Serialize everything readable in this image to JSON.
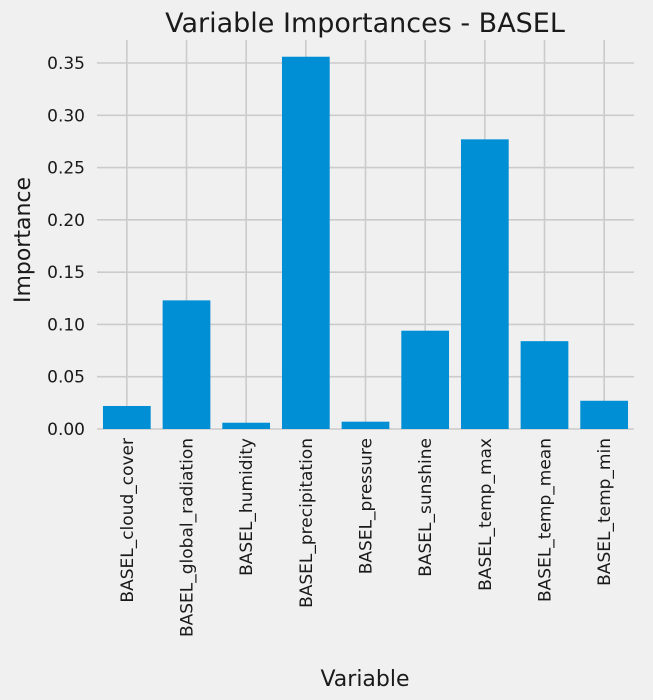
{
  "chart_data": {
    "type": "bar",
    "title": "Variable Importances - BASEL",
    "xlabel": "Variable",
    "ylabel": "Importance",
    "categories": [
      "BASEL_cloud_cover",
      "BASEL_global_radiation",
      "BASEL_humidity",
      "BASEL_precipitation",
      "BASEL_pressure",
      "BASEL_sunshine",
      "BASEL_temp_max",
      "BASEL_temp_mean",
      "BASEL_temp_min"
    ],
    "values": [
      0.022,
      0.123,
      0.006,
      0.356,
      0.007,
      0.094,
      0.277,
      0.084,
      0.027
    ],
    "ylim": [
      0,
      0.372
    ],
    "yticks": [
      {
        "value": 0.0,
        "label": "0.00"
      },
      {
        "value": 0.05,
        "label": "0.05"
      },
      {
        "value": 0.1,
        "label": "0.10"
      },
      {
        "value": 0.15,
        "label": "0.15"
      },
      {
        "value": 0.2,
        "label": "0.20"
      },
      {
        "value": 0.25,
        "label": "0.25"
      },
      {
        "value": 0.3,
        "label": "0.30"
      },
      {
        "value": 0.35,
        "label": "0.35"
      }
    ],
    "grid": true,
    "bar_color": "#008fd5",
    "background_color": "#f0f0f0",
    "grid_color": "#cbcbcb"
  }
}
